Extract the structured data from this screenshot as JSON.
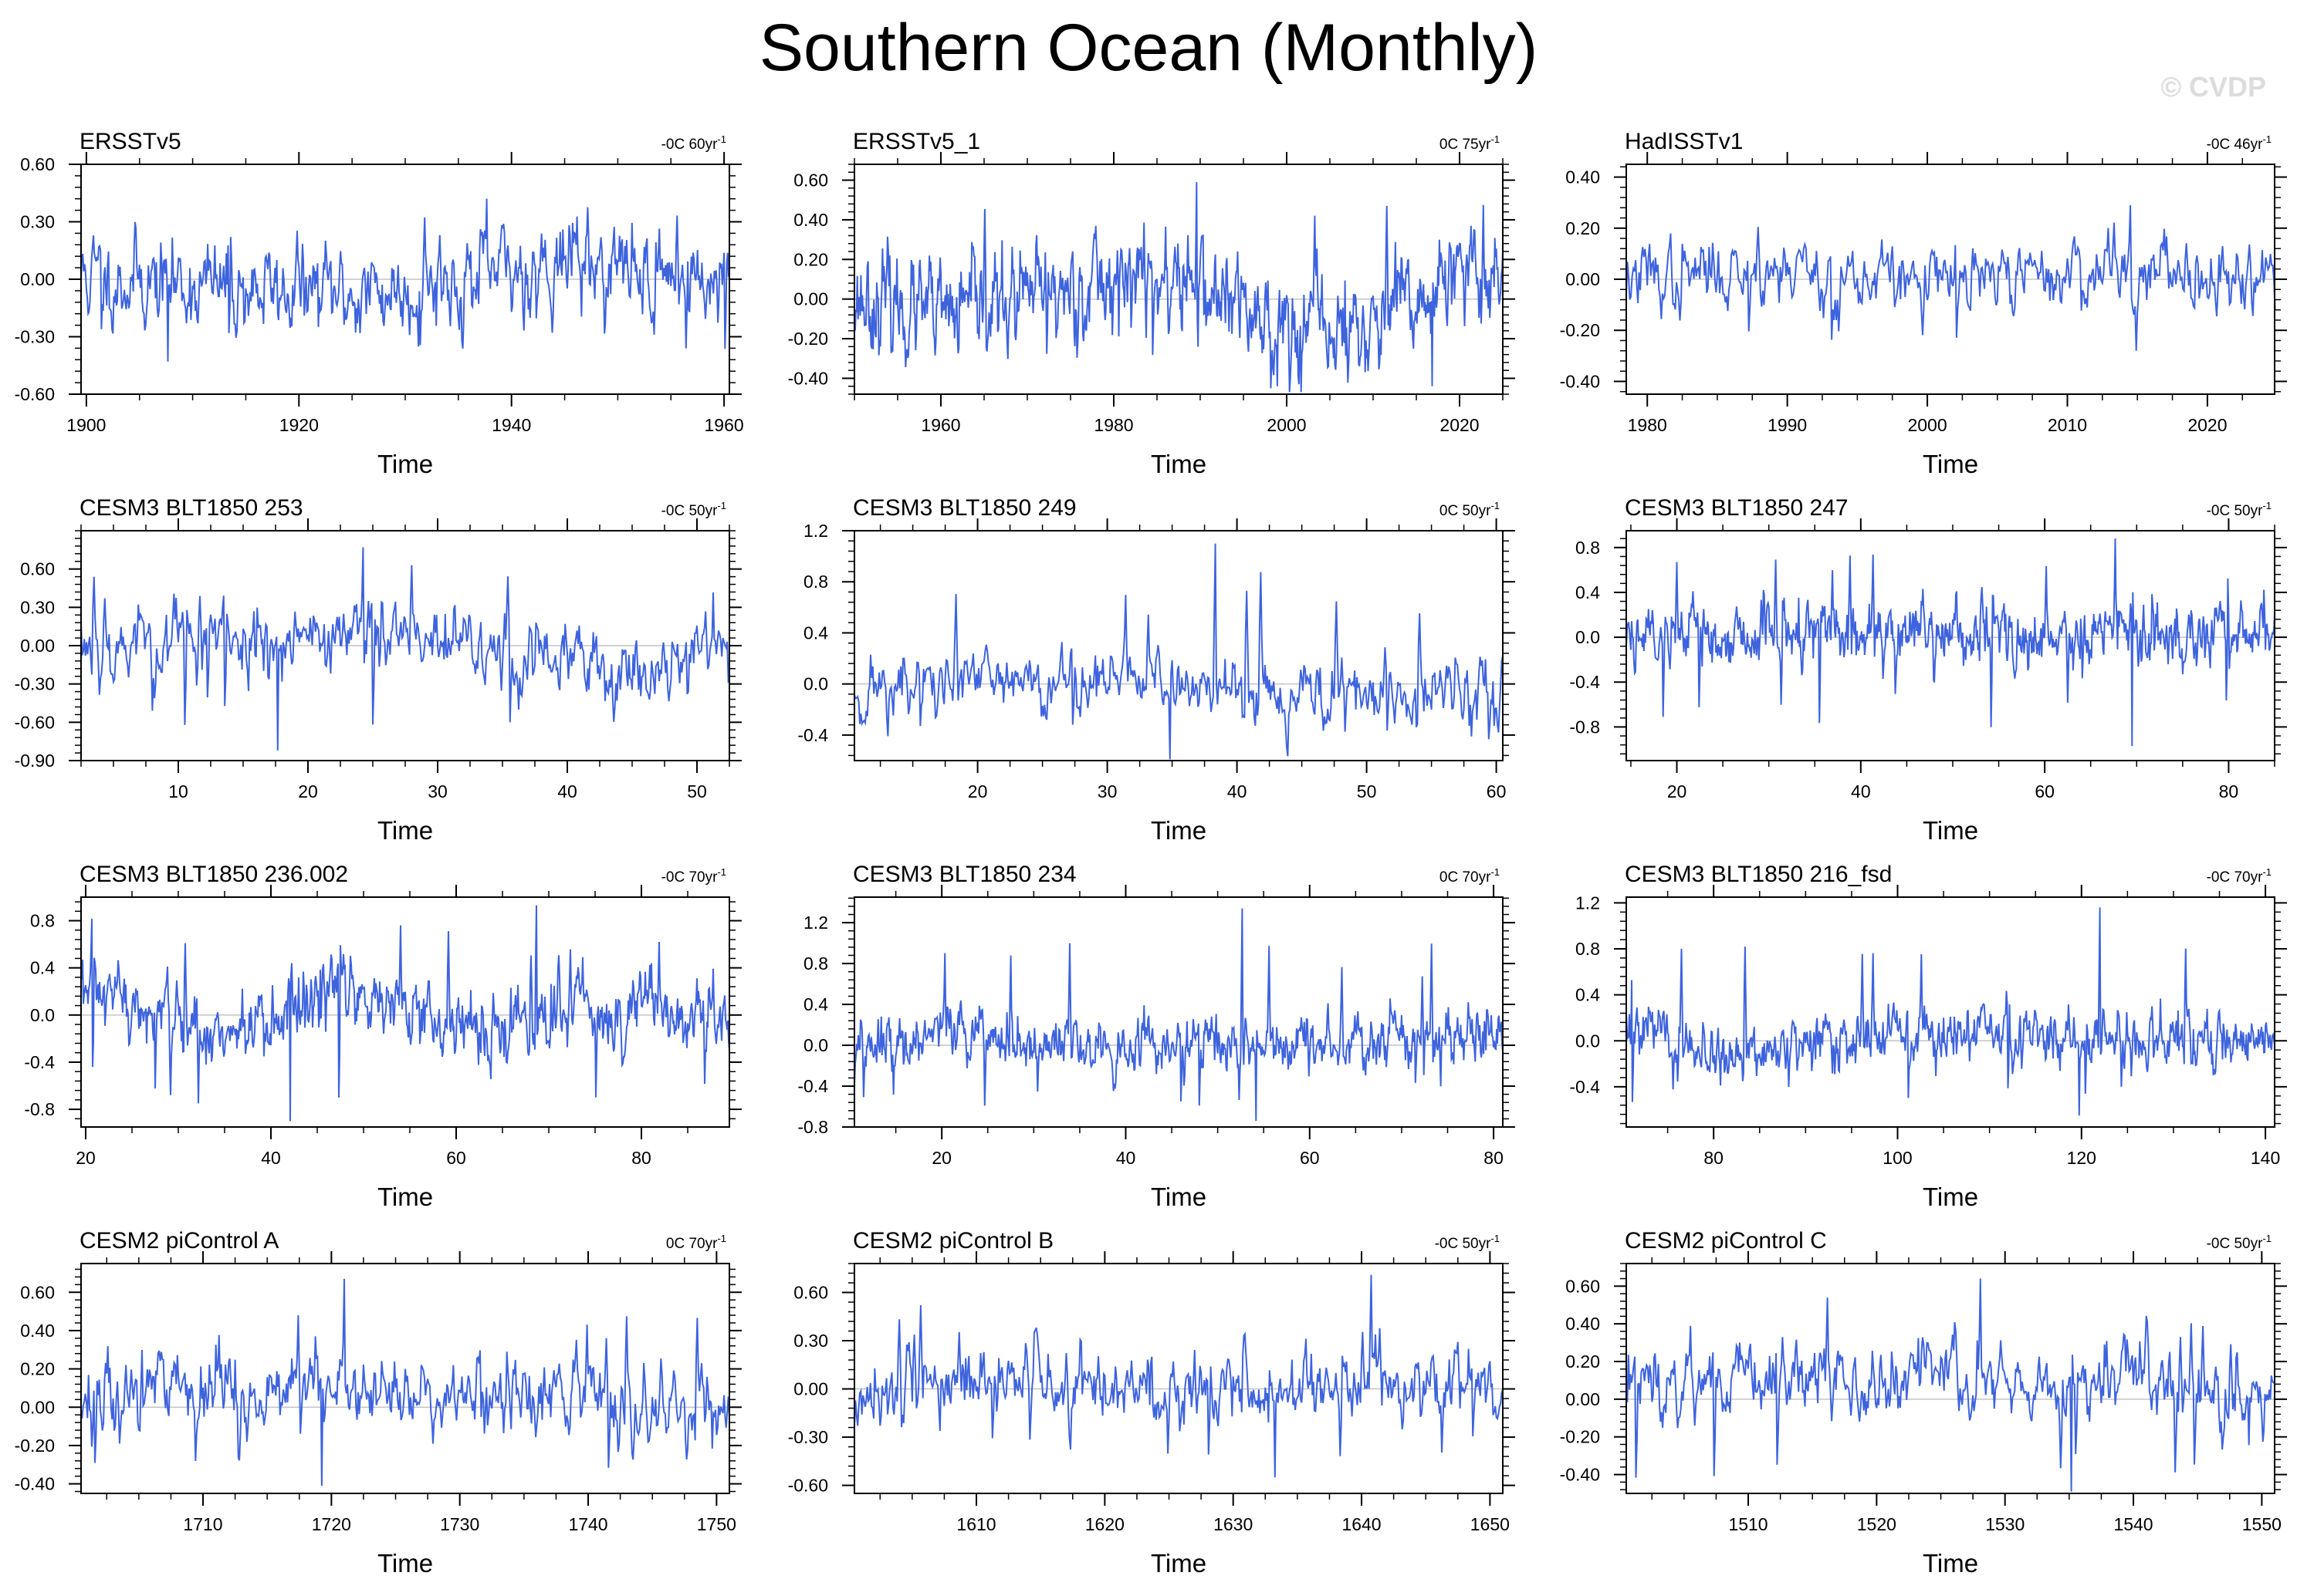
{
  "title": "Southern Ocean (Monthly)",
  "watermark": "© CVDP",
  "line_color": "#3d63dd",
  "chart_data": [
    {
      "type": "line",
      "name": "ERSSTv5",
      "trend": "-0C 60yr",
      "xlabel": "Time",
      "xlim": [
        1899.5,
        1960.5
      ],
      "ylim": [
        -0.6,
        0.6
      ],
      "xticks": [
        1900,
        1920,
        1940,
        1960
      ],
      "yticks": [
        -0.6,
        -0.3,
        0.0,
        0.3,
        0.6
      ],
      "ylabels": [
        "-0.60",
        "-0.30",
        "0.00",
        "0.30",
        "0.60"
      ],
      "seed": 11,
      "amp": 0.12,
      "spike": 0.42,
      "dip": -0.43,
      "drift": [
        [
          1899.5,
          0.02
        ],
        [
          1915,
          -0.05
        ],
        [
          1925,
          -0.08
        ],
        [
          1935,
          -0.02
        ],
        [
          1945,
          0.1
        ],
        [
          1955,
          0.02
        ],
        [
          1960.5,
          -0.03
        ]
      ]
    },
    {
      "type": "line",
      "name": "ERSSTv5_1",
      "trend": "0C 75yr",
      "xlabel": "Time",
      "xlim": [
        1950,
        2025
      ],
      "ylim": [
        -0.48,
        0.68
      ],
      "xticks": [
        1960,
        1980,
        2000,
        2020
      ],
      "yticks": [
        -0.4,
        -0.2,
        0.0,
        0.2,
        0.4,
        0.6
      ],
      "ylabels": [
        "-0.40",
        "-0.20",
        "0.00",
        "0.20",
        "0.40",
        "0.60"
      ],
      "seed": 23,
      "amp": 0.13,
      "spike": 0.59,
      "dip": -0.44,
      "drift": [
        [
          1950,
          0.02
        ],
        [
          1960,
          -0.1
        ],
        [
          1970,
          0.0
        ],
        [
          1980,
          0.1
        ],
        [
          1990,
          0.05
        ],
        [
          2000,
          -0.15
        ],
        [
          2010,
          -0.15
        ],
        [
          2018,
          0.05
        ],
        [
          2025,
          0.15
        ]
      ]
    },
    {
      "type": "line",
      "name": "HadISSTv1",
      "trend": "-0C 46yr",
      "xlabel": "Time",
      "xlim": [
        1978.5,
        2024.8
      ],
      "ylim": [
        -0.45,
        0.45
      ],
      "xticks": [
        1980,
        1990,
        2000,
        2010,
        2020
      ],
      "yticks": [
        -0.4,
        -0.2,
        0.0,
        0.2,
        0.4
      ],
      "ylabels": [
        "-0.40",
        "-0.20",
        "0.00",
        "0.20",
        "0.40"
      ],
      "seed": 37,
      "amp": 0.07,
      "spike": 0.29,
      "dip": -0.28,
      "drift": [
        [
          1978.5,
          0.0
        ],
        [
          1990,
          0.05
        ],
        [
          2000,
          -0.02
        ],
        [
          2010,
          0.02
        ],
        [
          2024.8,
          0.03
        ]
      ]
    },
    {
      "type": "line",
      "name": "CESM3 BLT1850 253",
      "trend": "-0C 50yr",
      "xlabel": "Time",
      "xlim": [
        2.5,
        52.5
      ],
      "ylim": [
        -0.9,
        0.9
      ],
      "xticks": [
        10,
        20,
        30,
        40,
        50
      ],
      "yticks": [
        -0.9,
        -0.6,
        -0.3,
        0.0,
        0.3,
        0.6
      ],
      "ylabels": [
        "-0.90",
        "-0.60",
        "-0.30",
        "0.00",
        "0.30",
        "0.60"
      ],
      "seed": 53,
      "amp": 0.16,
      "spike": 0.77,
      "dip": -0.82,
      "drift": [
        [
          2.5,
          0.0
        ],
        [
          20,
          0.1
        ],
        [
          30,
          0.0
        ],
        [
          45,
          -0.2
        ],
        [
          52.5,
          0.1
        ]
      ]
    },
    {
      "type": "line",
      "name": "CESM3 BLT1850 249",
      "trend": "0C 50yr",
      "xlabel": "Time",
      "xlim": [
        10.5,
        60.5
      ],
      "ylim": [
        -0.6,
        1.2
      ],
      "xticks": [
        20,
        30,
        40,
        50,
        60
      ],
      "yticks": [
        -0.4,
        0.0,
        0.4,
        0.8,
        1.2
      ],
      "ylabels": [
        "-0.4",
        "0.0",
        "0.4",
        "0.8",
        "1.2"
      ],
      "seed": 71,
      "amp": 0.14,
      "spike": 1.1,
      "dip": -0.6,
      "drift": [
        [
          10.5,
          -0.05
        ],
        [
          30,
          0.05
        ],
        [
          40,
          -0.05
        ],
        [
          60.5,
          -0.1
        ]
      ]
    },
    {
      "type": "line",
      "name": "CESM3 BLT1850 247",
      "trend": "-0C 50yr",
      "xlabel": "Time",
      "xlim": [
        14.5,
        85
      ],
      "ylim": [
        -1.1,
        0.95
      ],
      "xticks": [
        20,
        40,
        60,
        80
      ],
      "yticks": [
        -0.8,
        -0.4,
        0.0,
        0.4,
        0.8
      ],
      "ylabels": [
        "-0.8",
        "-0.4",
        "0.0",
        "0.4",
        "0.8"
      ],
      "seed": 89,
      "amp": 0.16,
      "spike": 0.88,
      "dip": -0.97,
      "drift": [
        [
          14.5,
          0.05
        ],
        [
          40,
          0.05
        ],
        [
          60,
          0.0
        ],
        [
          85,
          0.05
        ]
      ]
    },
    {
      "type": "line",
      "name": "CESM3 BLT1850 236.002",
      "trend": "-0C 70yr",
      "xlabel": "Time",
      "xlim": [
        19.5,
        89.5
      ],
      "ylim": [
        -0.95,
        1.0
      ],
      "xticks": [
        20,
        40,
        60,
        80
      ],
      "yticks": [
        -0.8,
        -0.4,
        0.0,
        0.4,
        0.8
      ],
      "ylabels": [
        "-0.8",
        "-0.4",
        "0.0",
        "0.4",
        "0.8"
      ],
      "seed": 97,
      "amp": 0.17,
      "spike": 0.93,
      "dip": -0.9,
      "drift": [
        [
          19.5,
          0.2
        ],
        [
          30,
          -0.1
        ],
        [
          40,
          -0.15
        ],
        [
          48,
          0.3
        ],
        [
          55,
          0.0
        ],
        [
          65,
          -0.1
        ],
        [
          80,
          0.1
        ],
        [
          89.5,
          -0.1
        ]
      ]
    },
    {
      "type": "line",
      "name": "CESM3 BLT1850 234",
      "trend": "0C 70yr",
      "xlabel": "Time",
      "xlim": [
        10.5,
        81
      ],
      "ylim": [
        -0.8,
        1.45
      ],
      "xticks": [
        20,
        40,
        60,
        80
      ],
      "yticks": [
        -0.8,
        -0.4,
        0.0,
        0.4,
        0.8,
        1.2
      ],
      "ylabels": [
        "-0.8",
        "-0.4",
        "0.0",
        "0.4",
        "0.8",
        "1.2"
      ],
      "seed": 113,
      "amp": 0.15,
      "spike": 1.34,
      "dip": -0.74,
      "drift": [
        [
          10.5,
          -0.2
        ],
        [
          20,
          0.2
        ],
        [
          30,
          0.0
        ],
        [
          81,
          0.05
        ]
      ]
    },
    {
      "type": "line",
      "name": "CESM3 BLT1850 216_fsd",
      "trend": "-0C 70yr",
      "xlabel": "Time",
      "xlim": [
        70.5,
        141
      ],
      "ylim": [
        -0.75,
        1.25
      ],
      "xticks": [
        80,
        100,
        120,
        140
      ],
      "yticks": [
        -0.4,
        0.0,
        0.4,
        0.8,
        1.2
      ],
      "ylabels": [
        "-0.4",
        "0.0",
        "0.4",
        "0.8",
        "1.2"
      ],
      "seed": 131,
      "amp": 0.13,
      "spike": 1.16,
      "dip": -0.65,
      "drift": [
        [
          70.5,
          0.15
        ],
        [
          80,
          -0.15
        ],
        [
          100,
          0.05
        ],
        [
          141,
          0.0
        ]
      ]
    },
    {
      "type": "line",
      "name": "CESM2 piControl A",
      "trend": "0C 70yr",
      "xlabel": "Time",
      "xlim": [
        1700.5,
        1751
      ],
      "ylim": [
        -0.45,
        0.75
      ],
      "xticks": [
        1710,
        1720,
        1730,
        1740,
        1750
      ],
      "yticks": [
        -0.4,
        -0.2,
        0.0,
        0.2,
        0.4,
        0.6
      ],
      "ylabels": [
        "-0.40",
        "-0.20",
        "0.00",
        "0.20",
        "0.40",
        "0.60"
      ],
      "seed": 149,
      "amp": 0.11,
      "spike": 0.67,
      "dip": -0.41,
      "drift": [
        [
          1700.5,
          -0.1
        ],
        [
          1705,
          0.1
        ],
        [
          1751,
          0.0
        ]
      ]
    },
    {
      "type": "line",
      "name": "CESM2 piControl B",
      "trend": "-0C 50yr",
      "xlabel": "Time",
      "xlim": [
        1600.5,
        1651
      ],
      "ylim": [
        -0.65,
        0.78
      ],
      "xticks": [
        1610,
        1620,
        1630,
        1640,
        1650
      ],
      "yticks": [
        -0.6,
        -0.3,
        0.0,
        0.3,
        0.6
      ],
      "ylabels": [
        "-0.60",
        "-0.30",
        "0.00",
        "0.30",
        "0.60"
      ],
      "seed": 167,
      "amp": 0.12,
      "spike": 0.71,
      "dip": -0.55,
      "drift": [
        [
          1600.5,
          -0.1
        ],
        [
          1610,
          0.05
        ],
        [
          1651,
          0.0
        ]
      ]
    },
    {
      "type": "line",
      "name": "CESM2 piControl C",
      "trend": "-0C 50yr",
      "xlabel": "Time",
      "xlim": [
        1500.5,
        1551
      ],
      "ylim": [
        -0.5,
        0.72
      ],
      "xticks": [
        1510,
        1520,
        1530,
        1540,
        1550
      ],
      "yticks": [
        -0.4,
        -0.2,
        0.0,
        0.2,
        0.4,
        0.6
      ],
      "ylabels": [
        "-0.40",
        "-0.20",
        "0.00",
        "0.20",
        "0.40",
        "0.60"
      ],
      "seed": 181,
      "amp": 0.1,
      "spike": 0.64,
      "dip": -0.52,
      "drift": [
        [
          1500.5,
          0.05
        ],
        [
          1540,
          0.1
        ],
        [
          1551,
          0.0
        ]
      ]
    }
  ]
}
